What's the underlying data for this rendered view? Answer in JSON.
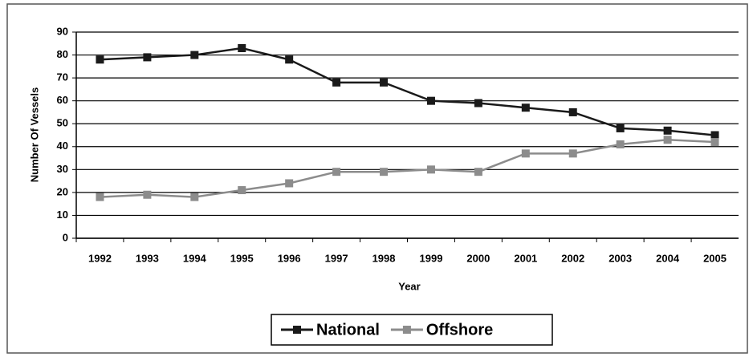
{
  "chart_data": {
    "type": "line",
    "categories": [
      "1992",
      "1993",
      "1994",
      "1995",
      "1996",
      "1997",
      "1998",
      "1999",
      "2000",
      "2001",
      "2002",
      "2003",
      "2004",
      "2005"
    ],
    "series": [
      {
        "name": "National",
        "color": "#1a1a1a",
        "values": [
          78,
          79,
          80,
          83,
          78,
          68,
          68,
          60,
          59,
          57,
          55,
          48,
          47,
          45
        ]
      },
      {
        "name": "Offshore",
        "color": "#8c8c8c",
        "values": [
          18,
          19,
          18,
          21,
          24,
          29,
          29,
          30,
          29,
          37,
          37,
          41,
          43,
          42
        ]
      }
    ],
    "x_label": "Year",
    "y_label": "Number Of Vessels",
    "ylim": [
      0,
      90
    ],
    "yticks": [
      0,
      10,
      20,
      30,
      40,
      50,
      60,
      70,
      80,
      90
    ],
    "grid": true,
    "legend": "bottom"
  }
}
